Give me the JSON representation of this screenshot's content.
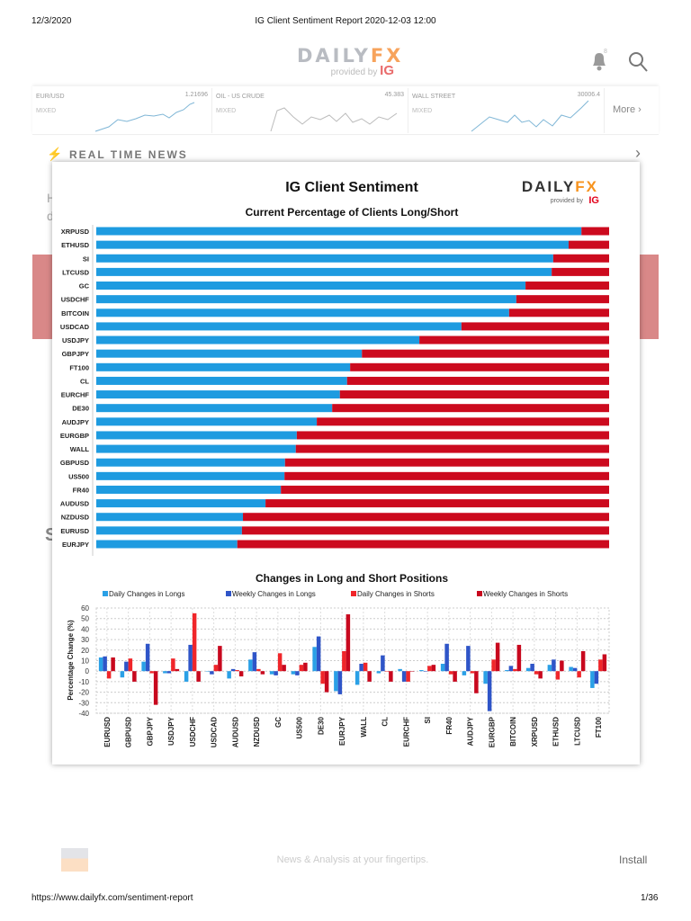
{
  "print_header": {
    "date": "12/3/2020",
    "title": "IG Client Sentiment Report 2020-12-03 12:00"
  },
  "print_footer": {
    "url": "https://www.dailyfx.com/sentiment-report",
    "page": "1/36"
  },
  "site": {
    "logo_main": "DAILY",
    "logo_fx": "FX",
    "logo_provided": "provided by",
    "logo_ig": "IG",
    "notif_count": "8"
  },
  "tickers": [
    {
      "name": "EUR/USD",
      "status": "MIXED",
      "value": "1.21696"
    },
    {
      "name": "OIL - US CRUDE",
      "status": "MIXED",
      "value": "45.383"
    },
    {
      "name": "WALL STREET",
      "status": "MIXED",
      "value": "30006.4"
    }
  ],
  "more_label": "More",
  "news": {
    "title": "REAL TIME NEWS"
  },
  "behind": {
    "f1": "H",
    "f2": "d",
    "f3": "S"
  },
  "bottom_bar": {
    "tagline": "News & Analysis at your fingertips.",
    "install": "Install"
  },
  "colors": {
    "long": "#1e9be0",
    "short": "#cc0a1e",
    "daily_long": "#2aa0e6",
    "weekly_long": "#2f55c8",
    "daily_short": "#f0262a",
    "weekly_short": "#c8081e",
    "accent": "#f7a35c"
  },
  "card": {
    "title": "IG Client Sentiment",
    "logo_main": "DAILY",
    "logo_fx": "FX",
    "logo_provided": "provided by",
    "logo_ig": "IG"
  },
  "chart_data": [
    {
      "type": "bar",
      "orientation": "horizontal",
      "stacked": true,
      "title": "Current Percentage of Clients Long/Short",
      "categories": [
        "XRPUSD",
        "ETHUSD",
        "SI",
        "LTCUSD",
        "GC",
        "USDCHF",
        "BITCOIN",
        "USDCAD",
        "USDJPY",
        "GBPJPY",
        "FT100",
        "CL",
        "EURCHF",
        "DE30",
        "AUDJPY",
        "EURGBP",
        "WALL",
        "GBPUSD",
        "US500",
        "FR40",
        "AUDUSD",
        "NZDUSD",
        "EURUSD",
        "EURJPY"
      ],
      "long_pct": [
        94.6,
        92.1,
        89.1,
        88.8,
        83.7,
        81.9,
        80.5,
        71.2,
        63.0,
        51.8,
        49.5,
        48.9,
        47.5,
        46.0,
        43.0,
        39.1,
        38.9,
        36.8,
        36.7,
        36.0,
        33.0,
        28.6,
        28.4,
        27.5
      ],
      "xlim": [
        0,
        100
      ]
    },
    {
      "type": "bar",
      "title": "Changes in Long and Short Positions",
      "ylabel": "Percentage Change (%)",
      "ylim": [
        -40,
        60
      ],
      "yticks": [
        "60",
        "50",
        "40",
        "30",
        "20",
        "10",
        "0",
        "-10",
        "-20",
        "-30",
        "-40"
      ],
      "grid": true,
      "legend": "top",
      "categories": [
        "EURUSD",
        "GBPUSD",
        "GBPJPY",
        "USDJPY",
        "USDCHF",
        "USDCAD",
        "AUDUSD",
        "NZDUSD",
        "GC",
        "US500",
        "DE30",
        "EURJPY",
        "WALL",
        "CL",
        "EURCHF",
        "SI",
        "FR40",
        "AUDJPY",
        "EURGBP",
        "BITCOIN",
        "XRPUSD",
        "ETHUSD",
        "LTCUSD",
        "FT100"
      ],
      "series": [
        {
          "name": "Daily Changes in Longs",
          "values": [
            13,
            -6,
            9,
            -2,
            -10,
            0,
            -7,
            11,
            -3,
            -3,
            23,
            -19,
            -13,
            -2,
            2,
            1,
            7,
            -4,
            -12,
            1,
            3,
            6,
            4,
            -16
          ]
        },
        {
          "name": "Weekly Changes in Longs",
          "values": [
            14,
            9,
            26,
            -2,
            25,
            -3,
            2,
            18,
            -4,
            -4,
            33,
            -22,
            7,
            15,
            -10,
            0,
            26,
            24,
            -38,
            5,
            7,
            11,
            3,
            -12
          ]
        },
        {
          "name": "Daily Changes in Shorts",
          "values": [
            -7,
            12,
            -2,
            12,
            55,
            6,
            1,
            2,
            17,
            6,
            -12,
            19,
            8,
            0,
            -10,
            5,
            -3,
            -2,
            11,
            2,
            -3,
            -8,
            -6,
            11
          ]
        },
        {
          "name": "Weekly Changes in Shorts",
          "values": [
            13,
            -10,
            -32,
            2,
            -10,
            24,
            -5,
            -3,
            6,
            8,
            -20,
            54,
            -10,
            -10,
            0,
            6,
            -10,
            -21,
            27,
            25,
            -7,
            10,
            19,
            16
          ]
        }
      ]
    }
  ]
}
